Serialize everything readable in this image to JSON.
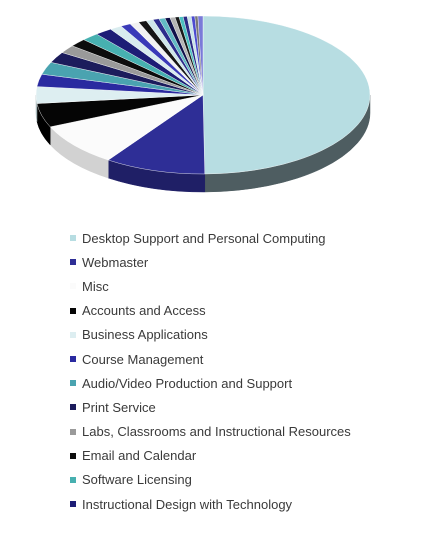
{
  "chart_data": {
    "type": "pie",
    "legend_position": "bottom",
    "series": [
      {
        "name": "Desktop Support and Personal Computing",
        "value": 51.0,
        "color": "#b7dde2",
        "side": "#4e5d61"
      },
      {
        "name": "Webmaster",
        "value": 10.0,
        "color": "#2e2e96",
        "side": "#1f1f66"
      },
      {
        "name": "Misc",
        "value": 9.0,
        "color": "#fbfbfb",
        "side": "#d2d2d2"
      },
      {
        "name": "Accounts and Access",
        "value": 5.0,
        "color": "#050505",
        "side": "#000000"
      },
      {
        "name": "Business Applications",
        "value": 3.5,
        "color": "#ddeef1",
        "side": "#a9b9bc"
      },
      {
        "name": "Course Management",
        "value": 2.6,
        "color": "#2a2aa0",
        "side": "#1c1c6a"
      },
      {
        "name": "Audio/Video Production and Support",
        "value": 2.6,
        "color": "#4aa3b0",
        "side": "#2f6a73"
      },
      {
        "name": "Print Service",
        "value": 2.3,
        "color": "#1c1c5c",
        "side": "#12123a"
      },
      {
        "name": "Labs, Classrooms and Instructional Resources",
        "value": 1.7,
        "color": "#9a9a9a",
        "side": "#6a6a6a"
      },
      {
        "name": "Email and Calendar",
        "value": 1.7,
        "color": "#0c0c0c",
        "side": "#000000"
      },
      {
        "name": "Software Licensing",
        "value": 1.7,
        "color": "#47b0b0",
        "side": "#2c7272"
      },
      {
        "name": "Instructional Design with Technology",
        "value": 1.7,
        "color": "#1d1d76",
        "side": "#121248"
      },
      {
        "value": 1.2,
        "color": "#d9ecef",
        "side": "#a5b6b9"
      },
      {
        "value": 1.0,
        "color": "#3a3ab8",
        "side": "#25257a"
      },
      {
        "value": 0.9,
        "color": "#f2f2f2",
        "side": "#bdbdbd"
      },
      {
        "value": 0.8,
        "color": "#151515",
        "side": "#000000"
      },
      {
        "value": 0.7,
        "color": "#cfe7ea",
        "side": "#98aaad"
      },
      {
        "value": 0.6,
        "color": "#2c2c8c",
        "side": "#1b1b58"
      },
      {
        "value": 0.6,
        "color": "#63bac4",
        "side": "#3e7a82"
      },
      {
        "value": 0.5,
        "color": "#10104a",
        "side": "#08082a"
      },
      {
        "value": 0.5,
        "color": "#b5b5b5",
        "side": "#808080"
      },
      {
        "value": 0.4,
        "color": "#1a1a1a",
        "side": "#000000"
      },
      {
        "value": 0.4,
        "color": "#4cc0c0",
        "side": "#2f7c7c"
      },
      {
        "value": 0.4,
        "color": "#2a2a84",
        "side": "#191952"
      },
      {
        "value": 0.4,
        "color": "#c9e4e8",
        "side": "#93a8ac"
      },
      {
        "value": 0.35,
        "color": "#4b4bd0",
        "side": "#30308a"
      },
      {
        "value": 0.3,
        "color": "#777777",
        "side": "#4d4d4d"
      },
      {
        "value": 0.5,
        "color": "#7a7ad8",
        "side": "#4c4c94"
      }
    ]
  }
}
